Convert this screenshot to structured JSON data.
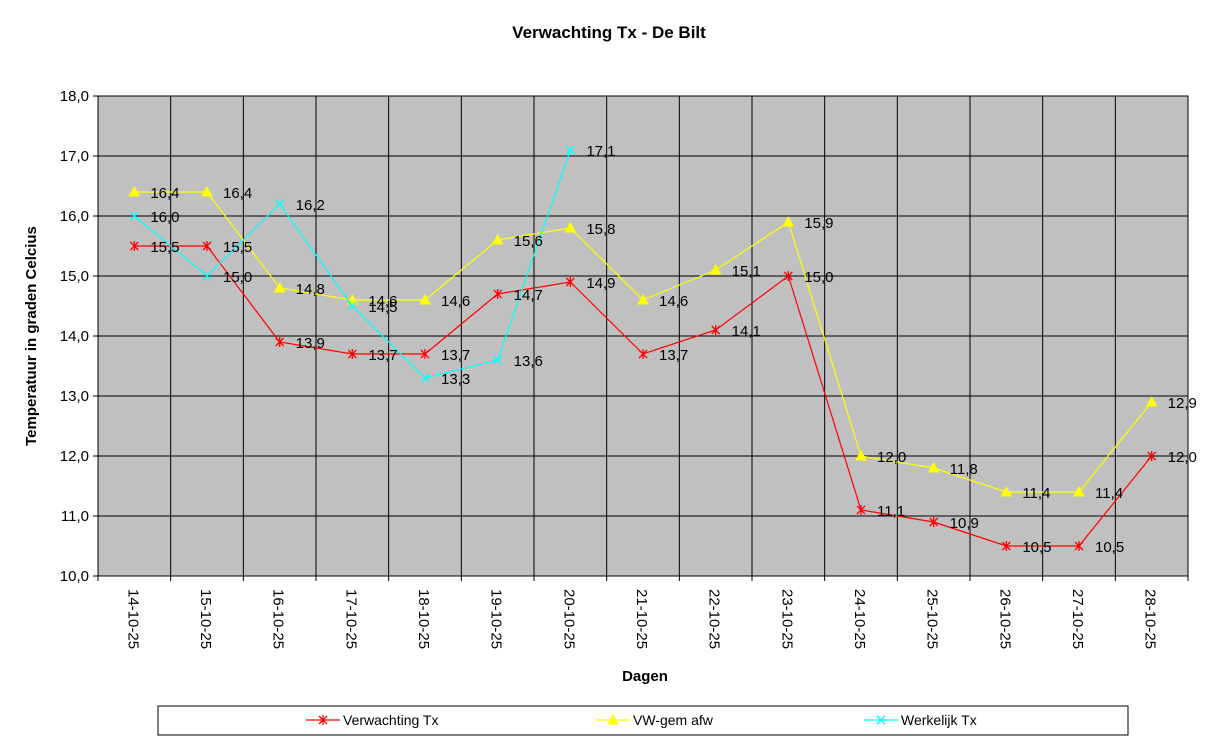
{
  "chart_data": {
    "type": "line",
    "title": "Verwachting Tx - De Bilt",
    "xlabel": "Dagen",
    "ylabel": "Temperatuur in graden Celcius",
    "ylim": [
      10,
      18
    ],
    "ystep": 1,
    "grid": true,
    "legend_position": "bottom",
    "categories": [
      "14-10-25",
      "15-10-25",
      "16-10-25",
      "17-10-25",
      "18-10-25",
      "19-10-25",
      "20-10-25",
      "21-10-25",
      "22-10-25",
      "23-10-25",
      "24-10-25",
      "25-10-25",
      "26-10-25",
      "27-10-25",
      "28-10-25"
    ],
    "series": [
      {
        "name": "Verwachting Tx",
        "color": "#ff0000",
        "marker": "asterisk",
        "values": [
          15.5,
          15.5,
          13.9,
          13.7,
          13.7,
          14.7,
          14.9,
          13.7,
          14.1,
          15.0,
          11.1,
          10.9,
          10.5,
          10.5,
          12.0
        ]
      },
      {
        "name": "VW-gem afw",
        "color": "#ffff00",
        "marker": "triangle",
        "values": [
          16.4,
          16.4,
          14.8,
          14.6,
          14.6,
          15.6,
          15.8,
          14.6,
          15.1,
          15.9,
          12.0,
          11.8,
          11.4,
          11.4,
          12.9
        ]
      },
      {
        "name": "Werkelijk Tx",
        "color": "#00ffff",
        "marker": "x",
        "values": [
          16.0,
          15.0,
          16.2,
          14.5,
          13.3,
          13.6,
          17.1,
          null,
          null,
          null,
          null,
          null,
          null,
          null,
          null
        ]
      }
    ],
    "colors": {
      "plot_background": "#c0c0c0",
      "grid": "#000000"
    }
  }
}
